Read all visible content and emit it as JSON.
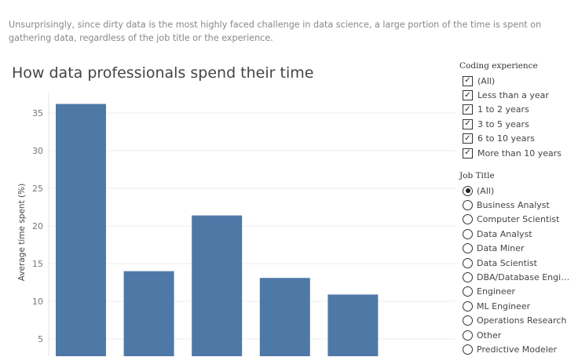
{
  "intro_text": "Unsurprisingly, since dirty data is the most highly faced challenge in data science, a large portion of the time is spent on gathering data, regardless of the job title or the experience.",
  "colors": {
    "bar": "#4e79a7",
    "grid": "#ececec",
    "tick": "#777777"
  },
  "chart_data": {
    "type": "bar",
    "title": "How data professionals spend their time",
    "ylabel": "Average time spent (%)",
    "xlabel": "",
    "categories": [
      "",
      "",
      "",
      "",
      ""
    ],
    "values": [
      36.2,
      14.0,
      21.4,
      13.1,
      10.9
    ],
    "y_ticks": [
      5,
      10,
      15,
      20,
      25,
      30,
      35
    ],
    "ylim": [
      0,
      37
    ],
    "grid": true
  },
  "filters": {
    "coding": {
      "title": "Coding experience",
      "options": [
        {
          "label": "(All)",
          "checked": true
        },
        {
          "label": "Less than a year",
          "checked": true
        },
        {
          "label": "1 to 2 years",
          "checked": true
        },
        {
          "label": "3 to 5 years",
          "checked": true
        },
        {
          "label": "6 to 10 years",
          "checked": true
        },
        {
          "label": "More than 10 years",
          "checked": true
        }
      ]
    },
    "job": {
      "title": "Job Title",
      "selected": "(All)",
      "options": [
        "(All)",
        "Business Analyst",
        "Computer Scientist",
        "Data Analyst",
        "Data Miner",
        "Data Scientist",
        "DBA/Database Engin...",
        "Engineer",
        "ML Engineer",
        "Operations Research",
        "Other",
        "Predictive Modeler"
      ]
    }
  }
}
